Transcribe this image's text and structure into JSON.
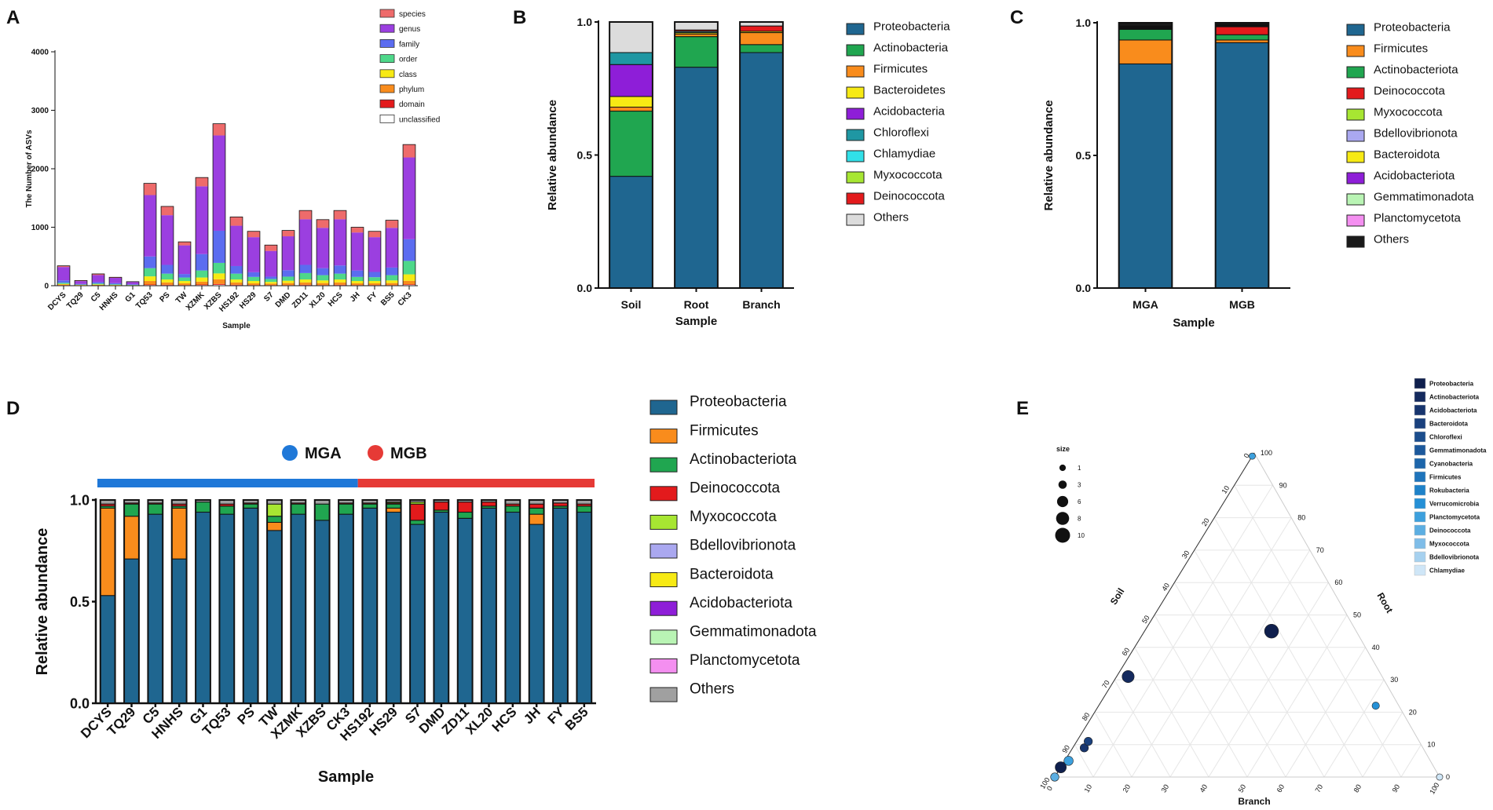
{
  "figure": {
    "panel_labels": [
      "A",
      "B",
      "C",
      "D",
      "E"
    ],
    "colors": {
      "proteo": "#1f6690",
      "actino": "#20a650",
      "firm": "#f98c1c",
      "bacte": "#f7ea14",
      "acido": "#8e1ed8",
      "chloro": "#1f97a3",
      "chlamy": "#31e0e8",
      "myxo": "#a7e632",
      "deino": "#e31a1c",
      "bdello": "#aaa8f0",
      "gemma": "#b9f4b4",
      "planc": "#f48ff0",
      "others": "#dcdcdc",
      "others_dark": "#a0a0a0",
      "mga": "#1f78d8",
      "mgb": "#e63a36"
    }
  },
  "chart_data": [
    {
      "panel": "A",
      "type": "bar",
      "stacked": true,
      "ylabel": "The Number of ASVs",
      "xlabel": "Sample",
      "ylim": [
        0,
        4000
      ],
      "yticks": [
        0,
        1000,
        2000,
        3000,
        4000
      ],
      "categories": [
        "DCYS",
        "TQ29",
        "C5",
        "HNHS",
        "G1",
        "TQ53",
        "PS",
        "TW",
        "XZMK",
        "XZBS",
        "HS192",
        "HS29",
        "S7",
        "DMD",
        "ZD11",
        "XL20",
        "HCS",
        "JH",
        "FY",
        "BS5",
        "CK3"
      ],
      "series": [
        {
          "name": "unclassified",
          "color": "#ffffff",
          "values": [
            5,
            2,
            3,
            2,
            2,
            10,
            8,
            5,
            10,
            15,
            8,
            5,
            5,
            5,
            8,
            5,
            8,
            5,
            5,
            5,
            12
          ]
        },
        {
          "name": "domain",
          "color": "#e31a1c",
          "values": [
            5,
            2,
            3,
            2,
            1,
            10,
            8,
            5,
            10,
            15,
            8,
            5,
            5,
            5,
            8,
            5,
            8,
            5,
            5,
            5,
            12
          ]
        },
        {
          "name": "phylum",
          "color": "#f98c1c",
          "values": [
            10,
            5,
            8,
            5,
            3,
            60,
            40,
            30,
            50,
            80,
            40,
            30,
            25,
            35,
            40,
            35,
            40,
            30,
            30,
            35,
            60
          ]
        },
        {
          "name": "class",
          "color": "#f7ea14",
          "values": [
            10,
            5,
            8,
            5,
            3,
            80,
            50,
            40,
            70,
            100,
            50,
            40,
            30,
            40,
            50,
            45,
            50,
            40,
            40,
            45,
            110
          ]
        },
        {
          "name": "order",
          "color": "#4ed88a",
          "values": [
            20,
            5,
            15,
            10,
            5,
            140,
            100,
            60,
            120,
            180,
            100,
            70,
            50,
            70,
            110,
            90,
            100,
            70,
            65,
            90,
            230
          ]
        },
        {
          "name": "family",
          "color": "#5b6cf0",
          "values": [
            40,
            10,
            25,
            20,
            10,
            200,
            150,
            60,
            280,
            550,
            130,
            80,
            40,
            110,
            140,
            120,
            140,
            110,
            90,
            130,
            370
          ]
        },
        {
          "name": "genus",
          "color": "#9b3fe0",
          "values": [
            230,
            50,
            120,
            90,
            40,
            1050,
            850,
            490,
            1160,
            1630,
            690,
            600,
            440,
            580,
            780,
            690,
            790,
            650,
            595,
            680,
            1400
          ]
        },
        {
          "name": "species",
          "color": "#ee6b6b",
          "values": [
            20,
            10,
            20,
            10,
            5,
            200,
            150,
            60,
            150,
            200,
            150,
            100,
            100,
            100,
            150,
            140,
            150,
            90,
            100,
            130,
            220
          ]
        }
      ],
      "legend": [
        "species",
        "genus",
        "family",
        "order",
        "class",
        "phylum",
        "domain",
        "unclassified"
      ],
      "legend_position": "top-right"
    },
    {
      "panel": "B",
      "type": "bar",
      "stacked": true,
      "ylabel": "Relative abundance",
      "xlabel": "Sample",
      "ylim": [
        0,
        1.0
      ],
      "yticks": [
        0.0,
        0.5,
        1.0
      ],
      "categories": [
        "Soil",
        "Root",
        "Branch"
      ],
      "series": [
        {
          "name": "Proteobacteria",
          "color": "#1f6690",
          "values": [
            0.42,
            0.83,
            0.885
          ]
        },
        {
          "name": "Actinobacteria",
          "color": "#20a650",
          "values": [
            0.245,
            0.115,
            0.03
          ]
        },
        {
          "name": "Firmicutes",
          "color": "#f98c1c",
          "values": [
            0.015,
            0.01,
            0.045
          ]
        },
        {
          "name": "Bacteroidetes",
          "color": "#f7ea14",
          "values": [
            0.04,
            0.005,
            0.005
          ]
        },
        {
          "name": "Acidobacteria",
          "color": "#8e1ed8",
          "values": [
            0.12,
            0.0,
            0.0
          ]
        },
        {
          "name": "Chloroflexi",
          "color": "#1f97a3",
          "values": [
            0.045,
            0.005,
            0.0
          ]
        },
        {
          "name": "Chlamydiae",
          "color": "#31e0e8",
          "values": [
            0.0,
            0.0,
            0.0
          ]
        },
        {
          "name": "Myxococcota",
          "color": "#a7e632",
          "values": [
            0.0,
            0.0,
            0.0
          ]
        },
        {
          "name": "Deinococcota",
          "color": "#e31a1c",
          "values": [
            0.0,
            0.005,
            0.02
          ]
        },
        {
          "name": "Others",
          "color": "#dcdcdc",
          "values": [
            0.115,
            0.03,
            0.015
          ]
        }
      ]
    },
    {
      "panel": "C",
      "type": "bar",
      "stacked": true,
      "ylabel": "Relative abundance",
      "xlabel": "Sample",
      "ylim": [
        0,
        1.0
      ],
      "yticks": [
        0.0,
        0.5,
        1.0
      ],
      "categories": [
        "MGA",
        "MGB"
      ],
      "series": [
        {
          "name": "Proteobacteria",
          "color": "#1f6690",
          "values": [
            0.845,
            0.925
          ]
        },
        {
          "name": "Firmicutes",
          "color": "#f98c1c",
          "values": [
            0.09,
            0.01
          ]
        },
        {
          "name": "Actinobacteriota",
          "color": "#20a650",
          "values": [
            0.04,
            0.02
          ]
        },
        {
          "name": "Deinococcota",
          "color": "#e31a1c",
          "values": [
            0.003,
            0.03
          ]
        },
        {
          "name": "Myxococcota",
          "color": "#a7e632",
          "values": [
            0.002,
            0.002
          ]
        },
        {
          "name": "Bdellovibrionota",
          "color": "#aaa8f0",
          "values": [
            0.002,
            0.002
          ]
        },
        {
          "name": "Bacteroidota",
          "color": "#f7ea14",
          "values": [
            0.002,
            0.002
          ]
        },
        {
          "name": "Acidobacteriota",
          "color": "#8e1ed8",
          "values": [
            0.001,
            0.001
          ]
        },
        {
          "name": "Gemmatimonadota",
          "color": "#b9f4b4",
          "values": [
            0.001,
            0.001
          ]
        },
        {
          "name": "Planctomycetota",
          "color": "#f48ff0",
          "values": [
            0.001,
            0.001
          ]
        },
        {
          "name": "Others",
          "color": "#1a1a1a",
          "values": [
            0.013,
            0.006
          ]
        }
      ]
    },
    {
      "panel": "D",
      "type": "bar",
      "stacked": true,
      "ylabel": "Relative abundance",
      "xlabel": "Sample",
      "ylim": [
        0,
        1.0
      ],
      "yticks": [
        0.0,
        0.5,
        1.0
      ],
      "groups": [
        {
          "name": "MGA",
          "color": "#1f78d8",
          "categories": [
            "DCYS",
            "TQ29",
            "C5",
            "HNHS",
            "G1",
            "TQ53",
            "PS",
            "TW",
            "XZMK",
            "XZBS",
            "CK3"
          ]
        },
        {
          "name": "MGB",
          "color": "#e63a36",
          "categories": [
            "HS192",
            "HS29",
            "S7",
            "DMD",
            "ZD11",
            "XL20",
            "HCS",
            "JH",
            "FY",
            "BS5"
          ]
        }
      ],
      "categories": [
        "DCYS",
        "TQ29",
        "C5",
        "HNHS",
        "G1",
        "TQ53",
        "PS",
        "TW",
        "XZMK",
        "XZBS",
        "CK3",
        "HS192",
        "HS29",
        "S7",
        "DMD",
        "ZD11",
        "XL20",
        "HCS",
        "JH",
        "FY",
        "BS5"
      ],
      "series": [
        {
          "name": "Proteobacteria",
          "color": "#1f6690",
          "values": [
            0.53,
            0.71,
            0.93,
            0.71,
            0.94,
            0.93,
            0.96,
            0.85,
            0.93,
            0.9,
            0.93,
            0.96,
            0.94,
            0.88,
            0.94,
            0.91,
            0.96,
            0.94,
            0.88,
            0.96,
            0.94
          ]
        },
        {
          "name": "Firmicutes",
          "color": "#f98c1c",
          "values": [
            0.43,
            0.21,
            0.0,
            0.25,
            0.0,
            0.0,
            0.0,
            0.04,
            0.0,
            0.0,
            0.0,
            0.0,
            0.02,
            0.0,
            0.0,
            0.0,
            0.0,
            0.0,
            0.05,
            0.0,
            0.0
          ]
        },
        {
          "name": "Actinobacteriota",
          "color": "#20a650",
          "values": [
            0.01,
            0.06,
            0.05,
            0.01,
            0.05,
            0.04,
            0.02,
            0.03,
            0.05,
            0.08,
            0.05,
            0.02,
            0.02,
            0.02,
            0.01,
            0.03,
            0.01,
            0.03,
            0.03,
            0.01,
            0.03
          ]
        },
        {
          "name": "Deinococcota",
          "color": "#e31a1c",
          "values": [
            0.01,
            0.005,
            0.005,
            0.01,
            0.0,
            0.01,
            0.005,
            0.0,
            0.005,
            0.0,
            0.005,
            0.005,
            0.005,
            0.08,
            0.04,
            0.05,
            0.02,
            0.01,
            0.02,
            0.015,
            0.01
          ]
        },
        {
          "name": "Myxococcota",
          "color": "#a7e632",
          "values": [
            0.0,
            0.0,
            0.0,
            0.0,
            0.0,
            0.0,
            0.0,
            0.06,
            0.0,
            0.0,
            0.0,
            0.0,
            0.005,
            0.01,
            0.0,
            0.0,
            0.0,
            0.0,
            0.0,
            0.0,
            0.0
          ]
        },
        {
          "name": "Bdellovibrionota",
          "color": "#aaa8f0",
          "values": [
            0.0,
            0.0,
            0.0,
            0.0,
            0.0,
            0.0,
            0.0,
            0.0,
            0.0,
            0.0,
            0.0,
            0.0,
            0.0,
            0.0,
            0.0,
            0.0,
            0.0,
            0.0,
            0.0,
            0.0,
            0.0
          ]
        },
        {
          "name": "Bacteroidota",
          "color": "#f7ea14",
          "values": [
            0.0,
            0.0,
            0.0,
            0.0,
            0.0,
            0.0,
            0.0,
            0.0,
            0.0,
            0.0,
            0.0,
            0.0,
            0.0,
            0.0,
            0.0,
            0.0,
            0.0,
            0.0,
            0.0,
            0.0,
            0.0
          ]
        },
        {
          "name": "Acidobacteriota",
          "color": "#8e1ed8",
          "values": [
            0.0,
            0.0,
            0.0,
            0.0,
            0.0,
            0.0,
            0.0,
            0.0,
            0.0,
            0.0,
            0.0,
            0.0,
            0.0,
            0.0,
            0.0,
            0.0,
            0.0,
            0.0,
            0.0,
            0.0,
            0.0
          ]
        },
        {
          "name": "Gemmatimonadota",
          "color": "#b9f4b4",
          "values": [
            0.0,
            0.0,
            0.0,
            0.0,
            0.0,
            0.0,
            0.0,
            0.0,
            0.0,
            0.0,
            0.0,
            0.0,
            0.0,
            0.0,
            0.0,
            0.0,
            0.0,
            0.0,
            0.0,
            0.0,
            0.0
          ]
        },
        {
          "name": "Planctomycetota",
          "color": "#f48ff0",
          "values": [
            0.0,
            0.0,
            0.0,
            0.0,
            0.0,
            0.0,
            0.0,
            0.0,
            0.0,
            0.0,
            0.0,
            0.0,
            0.0,
            0.0,
            0.0,
            0.0,
            0.0,
            0.0,
            0.0,
            0.0,
            0.0
          ]
        },
        {
          "name": "Others",
          "color": "#a0a0a0",
          "values": [
            0.02,
            0.015,
            0.015,
            0.02,
            0.01,
            0.02,
            0.015,
            0.02,
            0.015,
            0.02,
            0.015,
            0.015,
            0.01,
            0.01,
            0.01,
            0.01,
            0.01,
            0.02,
            0.02,
            0.015,
            0.02
          ]
        }
      ]
    },
    {
      "panel": "E",
      "type": "scatter",
      "subtype": "ternary",
      "axes": {
        "a": "Soil",
        "b": "Root",
        "c": "Branch"
      },
      "ticks": [
        0,
        10,
        20,
        30,
        40,
        50,
        60,
        70,
        80,
        90,
        100
      ],
      "size_legend": {
        "title": "size",
        "values": [
          1,
          3,
          6,
          8,
          10
        ]
      },
      "legend": [
        {
          "name": "Proteobacteria",
          "color": "#0f1f4d"
        },
        {
          "name": "Actinobacteriota",
          "color": "#142a5e"
        },
        {
          "name": "Acidobacteriota",
          "color": "#17356e"
        },
        {
          "name": "Bacteroidota",
          "color": "#1a417e"
        },
        {
          "name": "Chloroflexi",
          "color": "#1b4d8d"
        },
        {
          "name": "Gemmatimonadota",
          "color": "#1c599c"
        },
        {
          "name": "Cyanobacteria",
          "color": "#1d66ab"
        },
        {
          "name": "Firmicutes",
          "color": "#1e74bb"
        },
        {
          "name": "Rokubacteria",
          "color": "#1e82c9"
        },
        {
          "name": "Verrucomicrobia",
          "color": "#2590d6"
        },
        {
          "name": "Planctomycetota",
          "color": "#3da0dd"
        },
        {
          "name": "Deinococcota",
          "color": "#5caee2"
        },
        {
          "name": "Myxococcota",
          "color": "#7fbde8"
        },
        {
          "name": "Bdellovibrionota",
          "color": "#a6d1ef"
        },
        {
          "name": "Chlamydiae",
          "color": "#cfe6f7"
        }
      ],
      "points": [
        {
          "soil": 1,
          "root": 99,
          "branch": 0,
          "size": 1,
          "color": "#3da0dd"
        },
        {
          "soil": 22,
          "root": 45,
          "branch": 33,
          "size": 9,
          "color": "#0f1f4d"
        },
        {
          "soil": 66,
          "root": 31,
          "branch": 3,
          "size": 7,
          "color": "#142a5e"
        },
        {
          "soil": 6,
          "root": 22,
          "branch": 72,
          "size": 2,
          "color": "#2590d6"
        },
        {
          "soil": 0,
          "root": 0,
          "branch": 100,
          "size": 1,
          "color": "#cfe6f7"
        },
        {
          "soil": 88,
          "root": 9,
          "branch": 3,
          "size": 3,
          "color": "#17356e"
        },
        {
          "soil": 86,
          "root": 11,
          "branch": 3,
          "size": 3,
          "color": "#1a417e"
        },
        {
          "soil": 94,
          "root": 5,
          "branch": 1,
          "size": 4,
          "color": "#3da0dd"
        },
        {
          "soil": 97,
          "root": 3,
          "branch": 0,
          "size": 6,
          "color": "#0f1f4d"
        },
        {
          "soil": 100,
          "root": 0,
          "branch": 0,
          "size": 3,
          "color": "#5caee2"
        }
      ]
    }
  ]
}
